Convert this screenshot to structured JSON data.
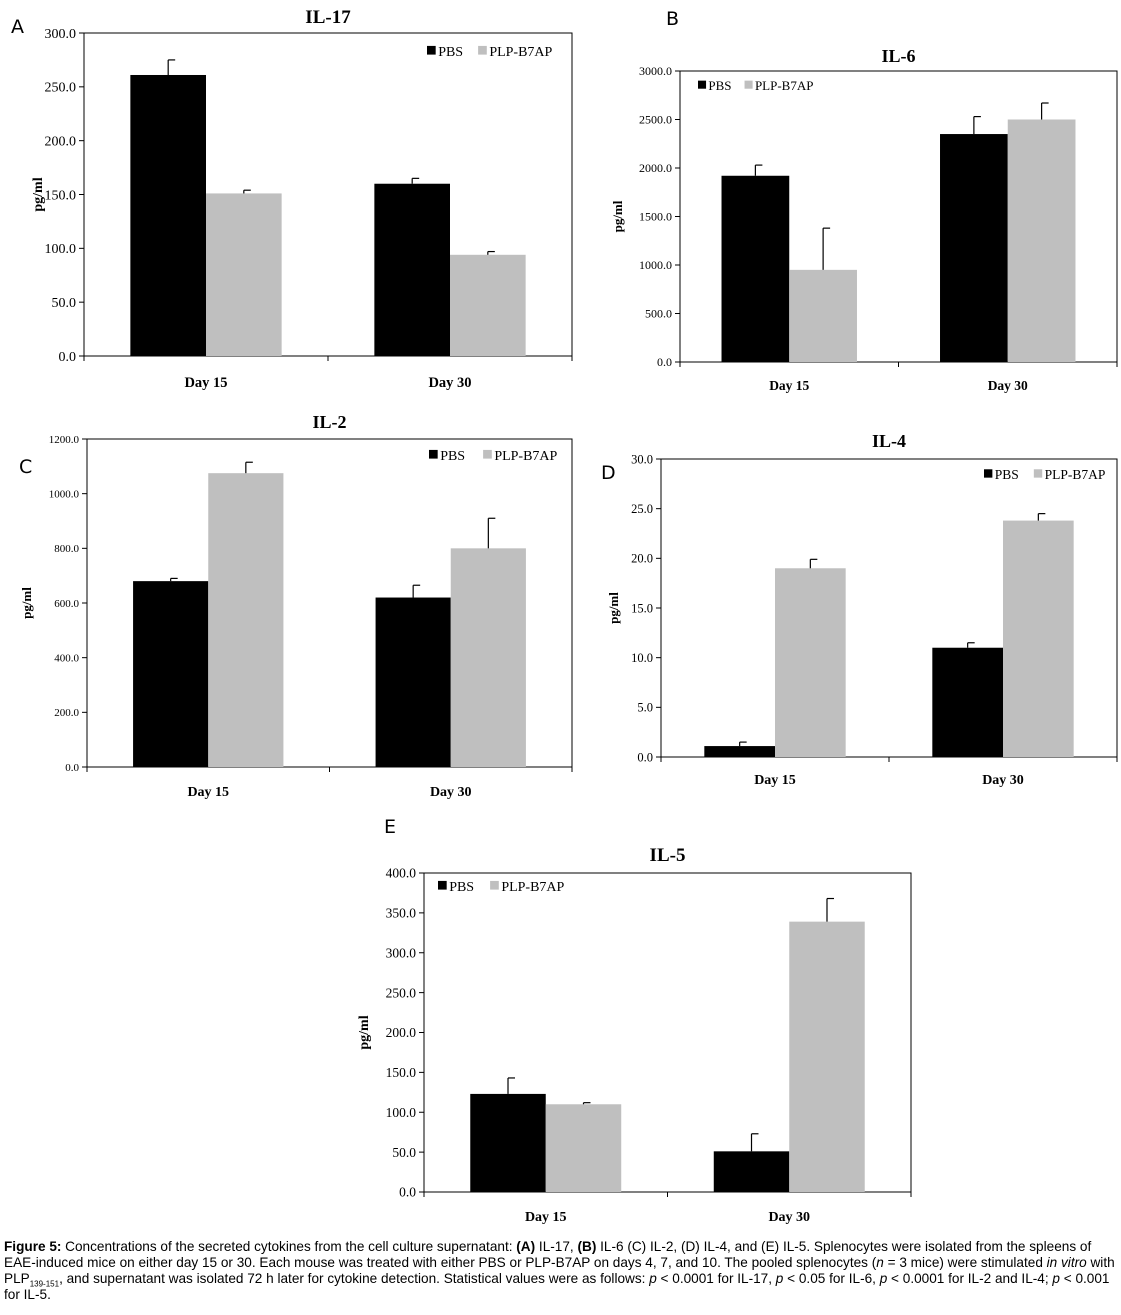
{
  "chart_data": [
    {
      "id": "A",
      "type": "bar",
      "title": "IL-17",
      "ylabel": "pg/ml",
      "xlabel": "",
      "categories": [
        "Day 15",
        "Day 30"
      ],
      "ylim": [
        0,
        300
      ],
      "yticks": [
        "0.0",
        "50.0",
        "100.0",
        "150.0",
        "200.0",
        "250.0",
        "300.0"
      ],
      "legend_position": "top-right",
      "series": [
        {
          "name": "PBS",
          "color": "#000000",
          "values": [
            261,
            160
          ],
          "errors": [
            14,
            5
          ]
        },
        {
          "name": "PLP-B7AP",
          "color": "#bfbfbf",
          "values": [
            151,
            94
          ],
          "errors": [
            3,
            3
          ]
        }
      ]
    },
    {
      "id": "B",
      "type": "bar",
      "title": "IL-6",
      "ylabel": "pg/ml",
      "xlabel": "",
      "categories": [
        "Day 15",
        "Day 30"
      ],
      "ylim": [
        0,
        3000
      ],
      "yticks": [
        "0.0",
        "500.0",
        "1000.0",
        "1500.0",
        "2000.0",
        "2500.0",
        "3000.0"
      ],
      "legend_position": "top-left",
      "series": [
        {
          "name": "PBS",
          "color": "#000000",
          "values": [
            1920,
            2350
          ],
          "errors": [
            110,
            180
          ]
        },
        {
          "name": "PLP-B7AP",
          "color": "#bfbfbf",
          "values": [
            950,
            2500
          ],
          "errors": [
            430,
            170
          ]
        }
      ]
    },
    {
      "id": "C",
      "type": "bar",
      "title": "IL-2",
      "ylabel": "pg/ml",
      "xlabel": "",
      "categories": [
        "Day 15",
        "Day 30"
      ],
      "ylim": [
        0,
        1200
      ],
      "yticks": [
        "0.0",
        "200.0",
        "400.0",
        "600.0",
        "800.0",
        "1000.0",
        "1200.0"
      ],
      "legend_position": "top-right",
      "series": [
        {
          "name": "PBS",
          "color": "#000000",
          "values": [
            680,
            620
          ],
          "errors": [
            10,
            45
          ]
        },
        {
          "name": "PLP-B7AP",
          "color": "#bfbfbf",
          "values": [
            1075,
            800
          ],
          "errors": [
            40,
            110
          ]
        }
      ]
    },
    {
      "id": "D",
      "type": "bar",
      "title": "IL-4",
      "ylabel": "pg/ml",
      "xlabel": "",
      "categories": [
        "Day 15",
        "Day 30"
      ],
      "ylim": [
        0,
        30
      ],
      "yticks": [
        "0.0",
        "5.0",
        "10.0",
        "15.0",
        "20.0",
        "25.0",
        "30.0"
      ],
      "legend_position": "top-right",
      "series": [
        {
          "name": "PBS",
          "color": "#000000",
          "values": [
            1.1,
            11.0
          ],
          "errors": [
            0.4,
            0.5
          ]
        },
        {
          "name": "PLP-B7AP",
          "color": "#bfbfbf",
          "values": [
            19.0,
            23.8
          ],
          "errors": [
            0.9,
            0.7
          ]
        }
      ]
    },
    {
      "id": "E",
      "type": "bar",
      "title": "IL-5",
      "ylabel": "pg/ml",
      "xlabel": "",
      "categories": [
        "Day 15",
        "Day 30"
      ],
      "ylim": [
        0,
        400
      ],
      "yticks": [
        "0.0",
        "50.0",
        "100.0",
        "150.0",
        "200.0",
        "250.0",
        "300.0",
        "350.0",
        "400.0"
      ],
      "legend_position": "top-left",
      "series": [
        {
          "name": "PBS",
          "color": "#000000",
          "values": [
            123,
            51
          ],
          "errors": [
            20,
            22
          ]
        },
        {
          "name": "PLP-B7AP",
          "color": "#bfbfbf",
          "values": [
            110,
            339
          ],
          "errors": [
            2,
            29
          ]
        }
      ]
    }
  ],
  "caption": {
    "label": "Figure 5:",
    "part1": " Concentrations of the secreted cytokines from the cell culture supernatant: ",
    "a_label": "(A)",
    "part2": " IL-17, ",
    "b_label": "(B)",
    "part3": " IL-6 (C) IL-2, (D) IL-4, and (E) IL-5. Splenocytes were isolated from the spleens of EAE-induced mice on either day 15 or 30.  Each mouse was treated with either PBS or PLP-B7AP on days 4, 7, and 10. The pooled splenocytes (",
    "n_label": "n",
    "part4": " = 3 mice) were stimulated ",
    "invitro": "in vitro",
    "part5": " with PLP",
    "sub": "139-151",
    "part6": ", and supernatant was isolated 72 h later for cytokine detection. Statistical values were as follows: ",
    "p1": "p",
    "part7": " < 0.0001 for IL-17, ",
    "p2": "p",
    "part8": " < 0.05 for IL-6, ",
    "p3": "p",
    "part9": " < 0.0001 for IL-2 and IL-4; ",
    "p4": "p",
    "part10": " < 0.001 for IL-5."
  }
}
